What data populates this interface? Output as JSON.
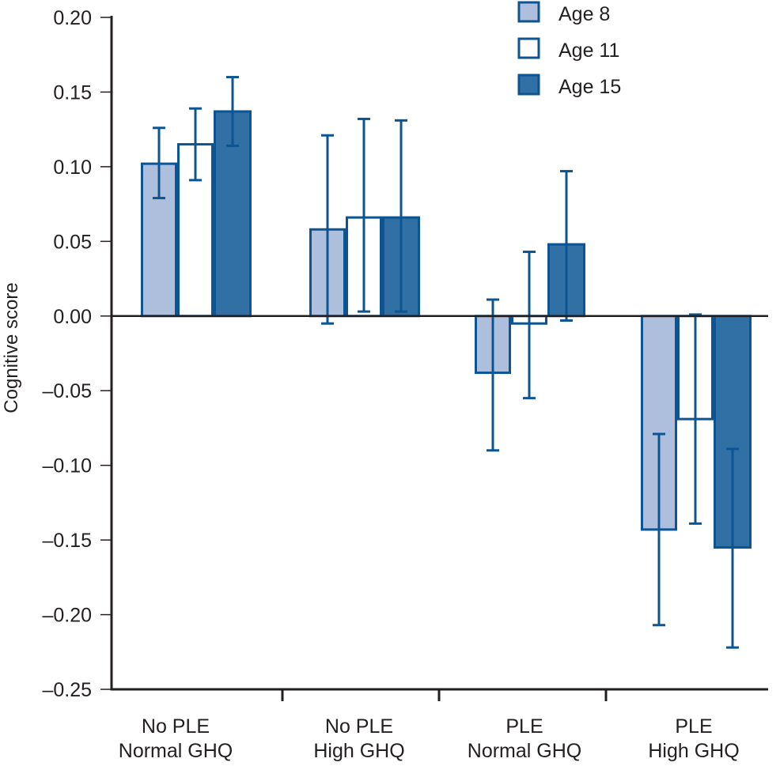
{
  "chart_data": {
    "type": "bar",
    "title": "",
    "xlabel": "",
    "ylabel": "Cognitive score",
    "ylim": [
      -0.25,
      0.2
    ],
    "yticks": [
      0.2,
      0.15,
      0.1,
      0.05,
      0.0,
      -0.05,
      -0.1,
      -0.15,
      -0.2,
      -0.25
    ],
    "ytick_labels": [
      "0.20",
      "0.15",
      "0.10",
      "0.05",
      "0.00",
      "–0.05",
      "–0.10",
      "–0.15",
      "–0.20",
      "–0.25"
    ],
    "grid": false,
    "legend_position": "top-right",
    "categories": [
      [
        "No PLE",
        "Normal GHQ"
      ],
      [
        "No PLE",
        "High GHQ"
      ],
      [
        "PLE",
        "Normal GHQ"
      ],
      [
        "PLE",
        "High GHQ"
      ]
    ],
    "series": [
      {
        "name": "Age 8",
        "fill": "#adbfdc",
        "stroke": "#0d5592",
        "values": [
          0.102,
          0.058,
          -0.038,
          -0.143
        ],
        "error_low": [
          0.079,
          -0.005,
          -0.09,
          -0.207
        ],
        "error_high": [
          0.126,
          0.121,
          0.011,
          -0.079
        ]
      },
      {
        "name": "Age 11",
        "fill": "#ffffff",
        "stroke": "#0d5592",
        "values": [
          0.115,
          0.066,
          -0.005,
          -0.069
        ],
        "error_low": [
          0.091,
          0.003,
          -0.055,
          -0.139
        ],
        "error_high": [
          0.139,
          0.132,
          0.043,
          0.001
        ]
      },
      {
        "name": "Age 15",
        "fill": "#3170a4",
        "stroke": "#0d5592",
        "values": [
          0.137,
          0.066,
          0.048,
          -0.155
        ],
        "error_low": [
          0.114,
          0.003,
          -0.003,
          -0.222
        ],
        "error_high": [
          0.16,
          0.131,
          0.097,
          -0.089
        ]
      }
    ]
  }
}
